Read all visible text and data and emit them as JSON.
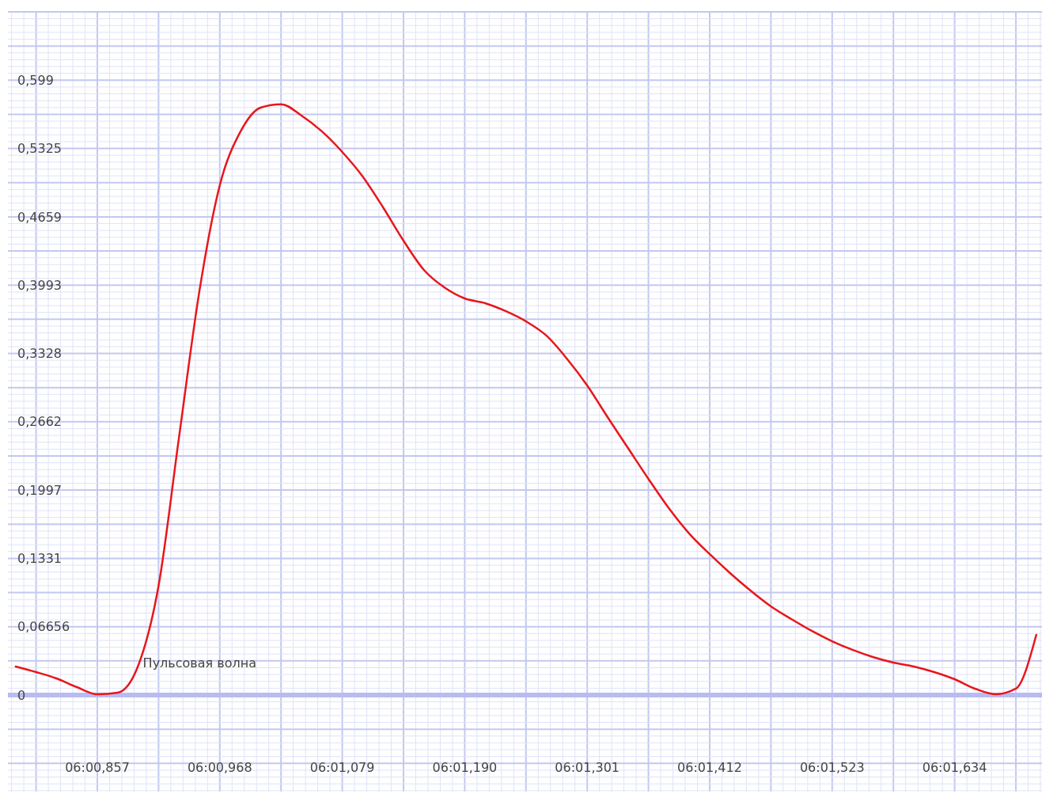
{
  "chart_data": {
    "type": "line",
    "categories": [
      null,
      null,
      null,
      null,
      "06:00,857",
      null,
      null,
      null,
      null,
      null,
      "06:00,968",
      null,
      null,
      null,
      null,
      null,
      "06:01,079",
      null,
      null,
      null,
      null,
      null,
      "06:01,190",
      null,
      null,
      null,
      null,
      null,
      "06:01,301",
      null,
      null,
      null,
      null,
      null,
      "06:01,412",
      null,
      null,
      null,
      null,
      null,
      "06:01,523",
      null,
      null,
      null,
      null,
      null,
      "06:01,634",
      null,
      null,
      null,
      null
    ],
    "series": [
      {
        "name": "Пульсовая волна",
        "color": "#e8161b",
        "values": [
          0.0278,
          0.0224,
          0.0162,
          0.0077,
          0.0008,
          0.0023,
          0.0285,
          0.1064,
          0.2507,
          0.3934,
          0.4967,
          0.5484,
          0.5723,
          0.5756,
          0.5646,
          0.5492,
          0.5291,
          0.5052,
          0.4751,
          0.4427,
          0.4142,
          0.3972,
          0.3864,
          0.3818,
          0.3741,
          0.3641,
          0.3502,
          0.3278,
          0.3016,
          0.2707,
          0.2406,
          0.2106,
          0.182,
          0.1573,
          0.1373,
          0.1188,
          0.1018,
          0.0864,
          0.074,
          0.0625,
          0.0524,
          0.044,
          0.037,
          0.0316,
          0.0278,
          0.0224,
          0.0154,
          0.0062,
          0.0008,
          0.0062,
          0.0586
        ]
      }
    ],
    "ylim": [
      -0.0941,
      0.6656
    ],
    "yticks": [
      {
        "value": 0,
        "label": "0"
      },
      {
        "value": 0.06656,
        "label": "0,06656"
      },
      {
        "value": 0.1331,
        "label": "0,1331"
      },
      {
        "value": 0.1997,
        "label": "0,1997"
      },
      {
        "value": 0.2662,
        "label": "0,2662"
      },
      {
        "value": 0.3328,
        "label": "0,3328"
      },
      {
        "value": 0.3993,
        "label": "0,3993"
      },
      {
        "value": 0.4659,
        "label": "0,4659"
      },
      {
        "value": 0.5325,
        "label": "0,5325"
      },
      {
        "value": 0.599,
        "label": "0,599"
      }
    ],
    "grid": true,
    "ref_lines": [
      {
        "axis": "y",
        "value": 0,
        "color": "#b8bcf2"
      }
    ]
  }
}
